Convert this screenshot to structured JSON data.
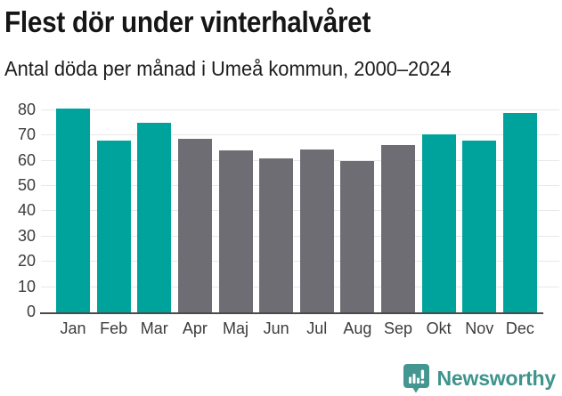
{
  "header": {
    "title": "Flest dör under vinterhalvåret",
    "subtitle": "Antal döda per månad i Umeå kommun, 2000–2024"
  },
  "chart_data": {
    "type": "bar",
    "title": "Flest dör under vinterhalvåret",
    "subtitle": "Antal döda per månad i Umeå kommun, 2000–2024",
    "categories": [
      "Jan",
      "Feb",
      "Mar",
      "Apr",
      "Maj",
      "Jun",
      "Jul",
      "Aug",
      "Sep",
      "Okt",
      "Nov",
      "Dec"
    ],
    "values": [
      80.5,
      68,
      75,
      68.5,
      64,
      61,
      64.5,
      60,
      66,
      70.5,
      68,
      79
    ],
    "highlighted_winter_months": [
      true,
      true,
      true,
      false,
      false,
      false,
      false,
      false,
      false,
      true,
      true,
      true
    ],
    "xlabel": "",
    "ylabel": "",
    "ylim": [
      0,
      82
    ],
    "yticks": [
      0,
      10,
      20,
      30,
      40,
      50,
      60,
      70,
      80
    ],
    "grid": true,
    "legend": "none",
    "colors": {
      "winter_bar": "#00a39b",
      "other_bar": "#6e6d73",
      "gridline": "#e8e8e8",
      "axis_line": "#4a4a4a",
      "tick_label": "#3c3c3c"
    }
  },
  "footer": {
    "brand": "Newsworthy",
    "brand_color": "#3e948c",
    "icon": "newsworthy-speech-bubble-chart-icon"
  }
}
